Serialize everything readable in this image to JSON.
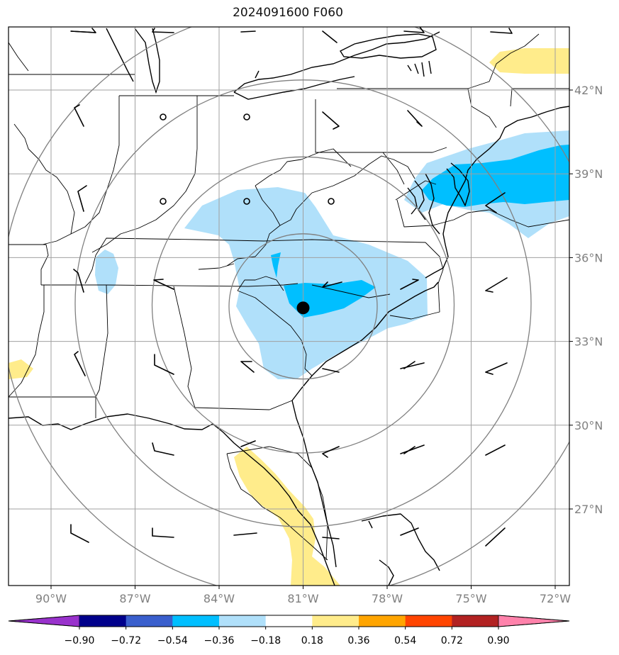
{
  "title": "2024091600 F060",
  "map": {
    "lon_ticks": [
      {
        "value": -90,
        "label": "90°W"
      },
      {
        "value": -87,
        "label": "87°W"
      },
      {
        "value": -84,
        "label": "84°W"
      },
      {
        "value": -81,
        "label": "81°W"
      },
      {
        "value": -78,
        "label": "78°W"
      },
      {
        "value": -75,
        "label": "75°W"
      },
      {
        "value": -72,
        "label": "72°W"
      }
    ],
    "lat_ticks": [
      {
        "value": 42,
        "label": "42°N"
      },
      {
        "value": 39,
        "label": "39°N"
      },
      {
        "value": 36,
        "label": "36°N"
      },
      {
        "value": 33,
        "label": "33°N"
      },
      {
        "value": 30,
        "label": "30°N"
      },
      {
        "value": 27,
        "label": "27°N"
      }
    ],
    "lon_range": [
      -91.5,
      -71.5
    ],
    "lat_range": [
      24.7,
      44.8
    ],
    "center_marker": {
      "lon": -81.0,
      "lat": 34.2
    },
    "range_rings_deg": [
      2.6,
      5.3,
      8.0,
      10.6
    ],
    "grid_color": "#a0a0a0",
    "tick_label_color": "#808080"
  },
  "colorbar": {
    "colors": [
      "#9932cc",
      "#00008b",
      "#3a5fcd",
      "#00bfff",
      "#b0e0fa",
      "#ffffff",
      "#ffec8b",
      "#ffa500",
      "#ff4500",
      "#b22222",
      "#ff82ab"
    ],
    "tick_labels": [
      "−0.90",
      "−0.72",
      "−0.54",
      "−0.36",
      "−0.18",
      "0.18",
      "0.36",
      "0.54",
      "0.72",
      "0.90"
    ]
  }
}
